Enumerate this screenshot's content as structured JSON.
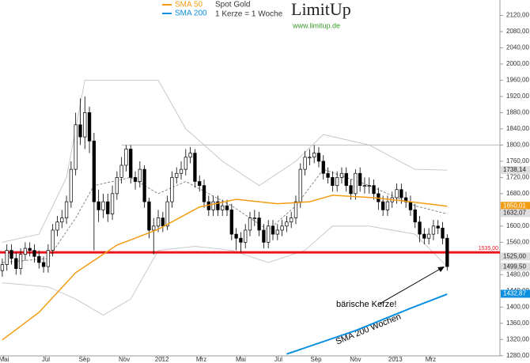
{
  "chart_data": {
    "type": "candlestick",
    "title": "Spot Gold",
    "subtitle": "1 Kerze = 1 Woche",
    "logo": "LimitUp",
    "logo_url": "www.limitup.de",
    "xlim": [
      -0.5,
      108.5
    ],
    "ylim": [
      1262,
      2158
    ],
    "xticks": [
      {
        "value": 0.35,
        "label": "Mai"
      },
      {
        "value": 9.5,
        "label": "Jul"
      },
      {
        "value": 17.9,
        "label": "Sep"
      },
      {
        "value": 26.6,
        "label": "Nov"
      },
      {
        "value": 34.8,
        "label": "2012"
      },
      {
        "value": 43.4,
        "label": "Mrz"
      },
      {
        "value": 52,
        "label": "Mai"
      },
      {
        "value": 60.2,
        "label": "Jul"
      },
      {
        "value": 68.4,
        "label": "Sep"
      },
      {
        "value": 77,
        "label": "Nov"
      },
      {
        "value": 85.7,
        "label": "2013"
      },
      {
        "value": 93.4,
        "label": "Mrz"
      }
    ],
    "yticks": [
      {
        "value": 1280,
        "label": "1280,00"
      },
      {
        "value": 1320,
        "label": "1320,00"
      },
      {
        "value": 1360,
        "label": "1360,00"
      },
      {
        "value": 1400,
        "label": "1400,00"
      },
      {
        "value": 1440,
        "label": "1440,00"
      },
      {
        "value": 1480,
        "label": "1480,00"
      },
      {
        "value": 1560,
        "label": "1560,00"
      },
      {
        "value": 1600,
        "label": "1600,00"
      },
      {
        "value": 1640,
        "label": "1640,00"
      },
      {
        "value": 1680,
        "label": "1680,00"
      },
      {
        "value": 1720,
        "label": "1720,00"
      },
      {
        "value": 1760,
        "label": "1760,00"
      },
      {
        "value": 1800,
        "label": "1800,00"
      },
      {
        "value": 1840,
        "label": "1840,00"
      },
      {
        "value": 1880,
        "label": "1880,00"
      },
      {
        "value": 1920,
        "label": "1920,00"
      },
      {
        "value": 1960,
        "label": "1960,00"
      },
      {
        "value": 2000,
        "label": "2000,00"
      },
      {
        "value": 2040,
        "label": "2040,00"
      },
      {
        "value": 2080,
        "label": "2080,00"
      },
      {
        "value": 2120,
        "label": "2120,00"
      }
    ],
    "open": [
      1490,
      1505,
      1540,
      1520,
      1495,
      1530,
      1545,
      1540,
      1525,
      1510,
      1500,
      1540,
      1590,
      1610,
      1620,
      1660,
      1740,
      1850,
      1820,
      1880,
      1810,
      1660,
      1640,
      1660,
      1630,
      1680,
      1720,
      1750,
      1790,
      1720,
      1710,
      1740,
      1660,
      1590,
      1600,
      1620,
      1600,
      1660,
      1720,
      1730,
      1740,
      1770,
      1780,
      1710,
      1700,
      1660,
      1640,
      1660,
      1640,
      1650,
      1640,
      1580,
      1570,
      1560,
      1590,
      1620,
      1620,
      1590,
      1560,
      1600,
      1580,
      1590,
      1600,
      1610,
      1620,
      1660,
      1740,
      1770,
      1770,
      1780,
      1760,
      1730,
      1720,
      1700,
      1720,
      1730,
      1700,
      1680,
      1730,
      1700,
      1700,
      1700,
      1680,
      1660,
      1640,
      1660,
      1670,
      1690,
      1670,
      1660,
      1640,
      1610,
      1580,
      1570,
      1580,
      1600,
      1595,
      1570
    ],
    "high": [
      1520,
      1555,
      1555,
      1535,
      1545,
      1560,
      1560,
      1555,
      1540,
      1525,
      1555,
      1605,
      1625,
      1640,
      1675,
      1760,
      1880,
      1915,
      1920,
      1895,
      1830,
      1690,
      1680,
      1680,
      1700,
      1735,
      1770,
      1800,
      1800,
      1735,
      1760,
      1750,
      1670,
      1620,
      1640,
      1635,
      1675,
      1735,
      1745,
      1760,
      1790,
      1795,
      1790,
      1725,
      1715,
      1675,
      1675,
      1675,
      1665,
      1665,
      1655,
      1595,
      1585,
      1605,
      1635,
      1640,
      1635,
      1605,
      1615,
      1615,
      1605,
      1615,
      1625,
      1635,
      1675,
      1755,
      1785,
      1790,
      1800,
      1795,
      1775,
      1745,
      1735,
      1735,
      1745,
      1745,
      1715,
      1740,
      1745,
      1720,
      1720,
      1715,
      1695,
      1675,
      1675,
      1685,
      1705,
      1705,
      1685,
      1675,
      1655,
      1625,
      1595,
      1595,
      1615,
      1615,
      1610,
      1580
    ],
    "low": [
      1475,
      1490,
      1505,
      1480,
      1480,
      1515,
      1525,
      1510,
      1495,
      1485,
      1485,
      1525,
      1575,
      1595,
      1605,
      1645,
      1725,
      1800,
      1790,
      1780,
      1540,
      1610,
      1620,
      1610,
      1615,
      1665,
      1705,
      1735,
      1705,
      1690,
      1695,
      1645,
      1570,
      1530,
      1585,
      1585,
      1590,
      1645,
      1705,
      1715,
      1725,
      1755,
      1695,
      1685,
      1645,
      1625,
      1625,
      1625,
      1625,
      1625,
      1565,
      1540,
      1535,
      1545,
      1575,
      1600,
      1575,
      1545,
      1545,
      1565,
      1565,
      1575,
      1585,
      1595,
      1605,
      1645,
      1725,
      1750,
      1755,
      1745,
      1715,
      1705,
      1685,
      1685,
      1705,
      1685,
      1665,
      1665,
      1685,
      1680,
      1680,
      1665,
      1640,
      1625,
      1625,
      1645,
      1655,
      1655,
      1645,
      1625,
      1595,
      1560,
      1555,
      1555,
      1565,
      1580,
      1555,
      1490
    ],
    "close": [
      1505,
      1540,
      1520,
      1495,
      1530,
      1545,
      1540,
      1525,
      1510,
      1500,
      1540,
      1590,
      1610,
      1620,
      1660,
      1740,
      1850,
      1820,
      1880,
      1810,
      1660,
      1640,
      1660,
      1630,
      1680,
      1720,
      1750,
      1790,
      1720,
      1710,
      1740,
      1660,
      1590,
      1600,
      1620,
      1600,
      1660,
      1720,
      1730,
      1740,
      1770,
      1780,
      1710,
      1700,
      1660,
      1640,
      1660,
      1640,
      1650,
      1640,
      1580,
      1570,
      1560,
      1590,
      1620,
      1620,
      1590,
      1560,
      1600,
      1580,
      1590,
      1600,
      1610,
      1620,
      1660,
      1740,
      1770,
      1770,
      1780,
      1760,
      1730,
      1720,
      1700,
      1720,
      1730,
      1700,
      1680,
      1730,
      1700,
      1700,
      1700,
      1680,
      1660,
      1640,
      1660,
      1670,
      1690,
      1670,
      1660,
      1640,
      1610,
      1580,
      1570,
      1580,
      1600,
      1595,
      1570,
      1500
    ],
    "series": [
      {
        "name": "SMA 50",
        "color": "#f39c12",
        "x": [
          0,
          8,
          16,
          25,
          34,
          43,
          51,
          60,
          67,
          72,
          81,
          89,
          97
        ],
        "values": [
          1319,
          1387,
          1485,
          1553,
          1592,
          1647,
          1666,
          1655,
          1660,
          1676,
          1670,
          1660,
          1649
        ]
      },
      {
        "name": "SMA 200",
        "color": "#0b8fe0",
        "x": [
          62,
          77,
          89,
          97
        ],
        "values": [
          1284,
          1342,
          1397,
          1432
        ]
      }
    ],
    "bands": [
      {
        "color": "#c8c8c8",
        "x": [
          0,
          8,
          14,
          18,
          34,
          40,
          48,
          56,
          64,
          70,
          80,
          90,
          97
        ],
        "values": [
          1560,
          1580,
          1720,
          1960,
          1960,
          1840,
          1760,
          1700,
          1760,
          1826,
          1800,
          1740,
          1738
        ]
      },
      {
        "color": "#c8c8c8",
        "x": [
          0,
          10,
          16,
          22,
          28,
          34,
          42,
          50,
          58,
          66,
          72,
          80,
          90,
          97
        ],
        "values": [
          1460,
          1450,
          1420,
          1380,
          1420,
          1540,
          1550,
          1540,
          1510,
          1540,
          1600,
          1600,
          1580,
          1500
        ]
      },
      {
        "color": "#888888",
        "dashed": true,
        "x": [
          0,
          10,
          16,
          20,
          28,
          34,
          40,
          50,
          58,
          64,
          70,
          80,
          90,
          97
        ],
        "values": [
          1510,
          1520,
          1620,
          1700,
          1720,
          1680,
          1710,
          1650,
          1590,
          1650,
          1740,
          1700,
          1650,
          1630
        ]
      }
    ],
    "levels": [
      {
        "value": 1800,
        "color": "#bbbbbb",
        "from_x": 26
      },
      {
        "value": 1535,
        "color": "#e8141c",
        "from_x": -0.5
      }
    ],
    "price_labels": [
      {
        "value": 1738.14,
        "label": "1738,14",
        "color": "#dddddd"
      },
      {
        "value": 1650.01,
        "label": "1650,01",
        "color": "#f39c12"
      },
      {
        "value": 1632.07,
        "label": "1632,07",
        "color": "#dddddd"
      },
      {
        "value": 1535,
        "label": "1535,00",
        "color": "#e8141c",
        "boxed": false
      },
      {
        "value": 1525,
        "label": "1525,00",
        "color": "#dddddd"
      },
      {
        "value": 1499.5,
        "label": "1499,50",
        "color": "#dddddd"
      },
      {
        "value": 1432.87,
        "label": "1432,87",
        "color": "#0b8fe0"
      }
    ],
    "annotations": [
      "bärische Kerze!",
      "SMA 200 Wochen"
    ]
  }
}
